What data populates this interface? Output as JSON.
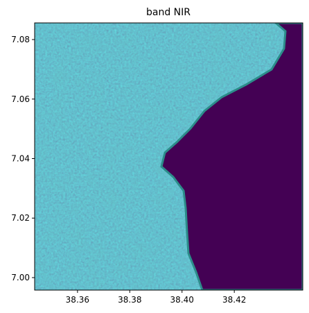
{
  "chart_data": {
    "type": "image",
    "title": "band NIR",
    "xlim": [
      38.3436,
      38.4462
    ],
    "ylim": [
      6.9958,
      7.0856
    ],
    "xticks": [
      38.36,
      38.38,
      {
        "value": 38.4,
        "label": "38.40"
      },
      38.42
    ],
    "yticks": [
      {
        "value": 7,
        "label": "7.00"
      },
      7.02,
      7.04,
      7.06,
      7.08
    ]
  }
}
